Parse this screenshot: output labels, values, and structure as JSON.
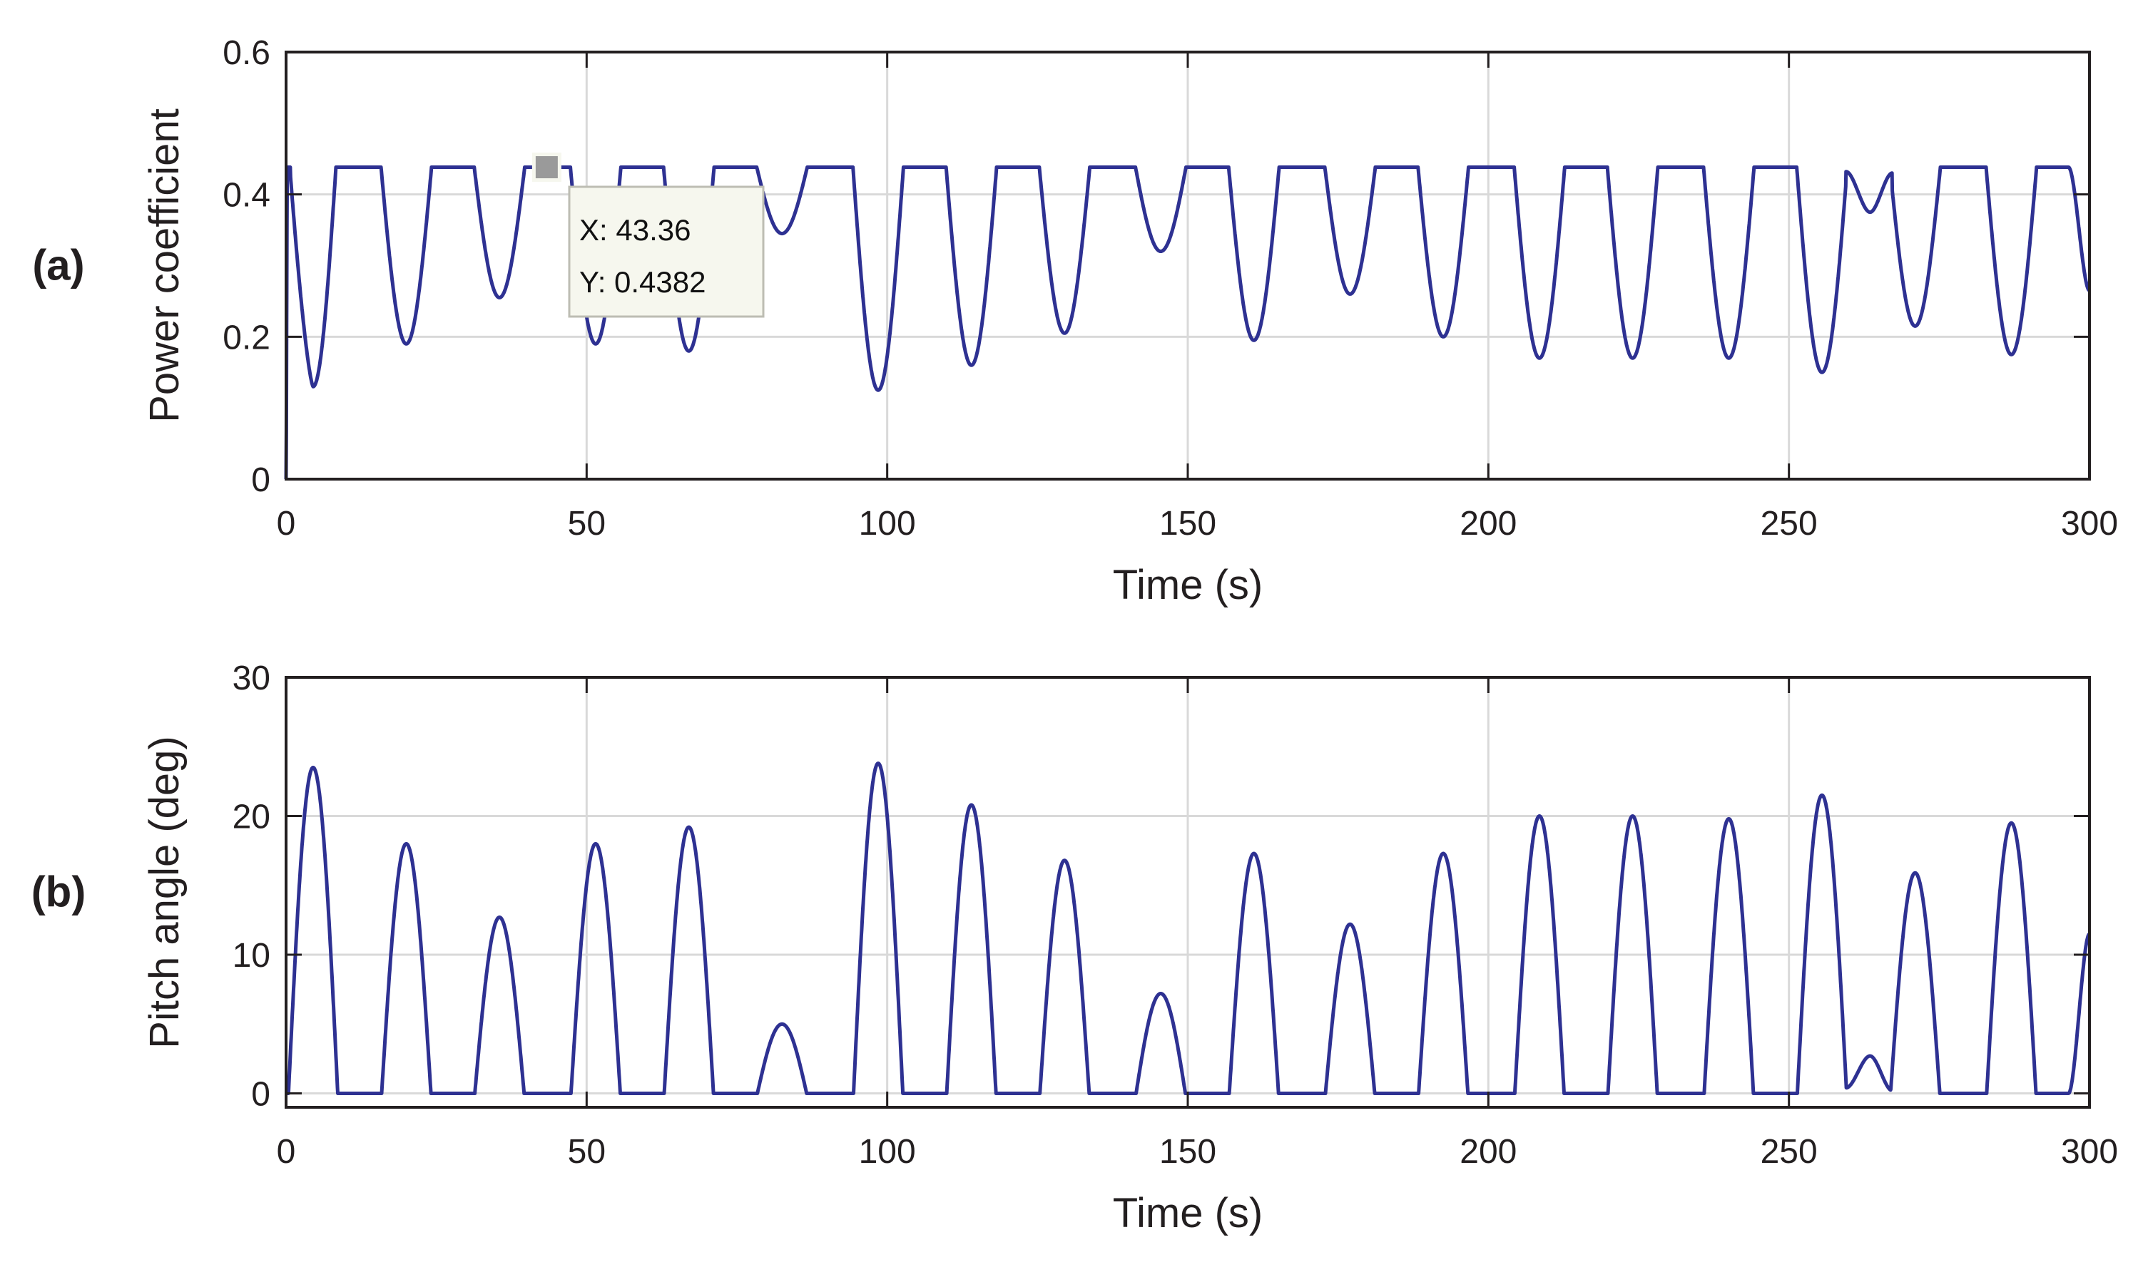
{
  "colors": {
    "line": "#2e3192",
    "grid": "#d9d9d9",
    "axis": "#231f20",
    "tooltip_bg": "#f6f7ee",
    "tooltip_border": "#bdbdb3",
    "marker": "#9a9a9a"
  },
  "chart_data": [
    {
      "type": "line",
      "panel_label": "(a)",
      "title": "",
      "xlabel": "Time (s)",
      "ylabel": "Power coefficient",
      "xlim": [
        0,
        300
      ],
      "ylim": [
        0,
        0.6
      ],
      "xticks": [
        0,
        50,
        100,
        150,
        200,
        250,
        300
      ],
      "xtick_labels": [
        "0",
        "50",
        "100",
        "150",
        "200",
        "250",
        "300"
      ],
      "yticks": [
        0,
        0.2,
        0.4,
        0.6
      ],
      "ytick_labels": [
        "0",
        "0.2",
        "0.4",
        "0.6"
      ],
      "grid": true,
      "plateau": 0.4382,
      "start_drop": {
        "t": 0.2,
        "value": 0.43
      },
      "dips": [
        {
          "t": 4.5,
          "value": 0.13
        },
        {
          "t": 20,
          "value": 0.19
        },
        {
          "t": 35.5,
          "value": 0.255
        },
        {
          "t": 51.5,
          "value": 0.19
        },
        {
          "t": 67,
          "value": 0.18
        },
        {
          "t": 82.5,
          "value": 0.345
        },
        {
          "t": 98.5,
          "value": 0.125
        },
        {
          "t": 114,
          "value": 0.16
        },
        {
          "t": 129.5,
          "value": 0.205
        },
        {
          "t": 145.5,
          "value": 0.32
        },
        {
          "t": 161,
          "value": 0.195
        },
        {
          "t": 177,
          "value": 0.26
        },
        {
          "t": 192.5,
          "value": 0.2
        },
        {
          "t": 208.5,
          "value": 0.17
        },
        {
          "t": 224,
          "value": 0.17
        },
        {
          "t": 240,
          "value": 0.17
        },
        {
          "t": 255.5,
          "value": 0.15
        },
        {
          "t": 271,
          "value": 0.215
        },
        {
          "t": 287,
          "value": 0.175
        }
      ],
      "bumps": [
        {
          "t": 263.5,
          "value": 0.375
        }
      ],
      "end_value": 0.265,
      "series": [
        {
          "name": "Power coefficient"
        }
      ],
      "datatip": {
        "x": 43.36,
        "y": 0.4382,
        "x_text": "X: 43.36",
        "y_text": "Y: 0.4382"
      }
    },
    {
      "type": "line",
      "panel_label": "(b)",
      "title": "",
      "xlabel": "Time (s)",
      "ylabel": "Pitch angle (deg)",
      "xlim": [
        0,
        300
      ],
      "ylim": [
        -1,
        30
      ],
      "xticks": [
        0,
        50,
        100,
        150,
        200,
        250,
        300
      ],
      "xtick_labels": [
        "0",
        "50",
        "100",
        "150",
        "200",
        "250",
        "300"
      ],
      "yticks": [
        0,
        10,
        20,
        30
      ],
      "ytick_labels": [
        "0",
        "10",
        "20",
        "30"
      ],
      "grid": true,
      "baseline": 0,
      "peaks": [
        {
          "t": 4.5,
          "value": 23.5
        },
        {
          "t": 20,
          "value": 18
        },
        {
          "t": 35.5,
          "value": 12.7
        },
        {
          "t": 51.5,
          "value": 18
        },
        {
          "t": 67,
          "value": 19.2
        },
        {
          "t": 82.5,
          "value": 5
        },
        {
          "t": 98.5,
          "value": 23.8
        },
        {
          "t": 114,
          "value": 20.8
        },
        {
          "t": 129.5,
          "value": 16.8
        },
        {
          "t": 145.5,
          "value": 7.2
        },
        {
          "t": 161,
          "value": 17.3
        },
        {
          "t": 177,
          "value": 12.2
        },
        {
          "t": 192.5,
          "value": 17.3
        },
        {
          "t": 208.5,
          "value": 20
        },
        {
          "t": 224,
          "value": 20
        },
        {
          "t": 240,
          "value": 19.8
        },
        {
          "t": 255.5,
          "value": 21.5
        },
        {
          "t": 271,
          "value": 15.9
        },
        {
          "t": 287,
          "value": 19.5
        }
      ],
      "small_bump": {
        "t": 263.5,
        "value": 2.7
      },
      "end_value": 11.5,
      "series": [
        {
          "name": "Pitch angle"
        }
      ]
    }
  ]
}
